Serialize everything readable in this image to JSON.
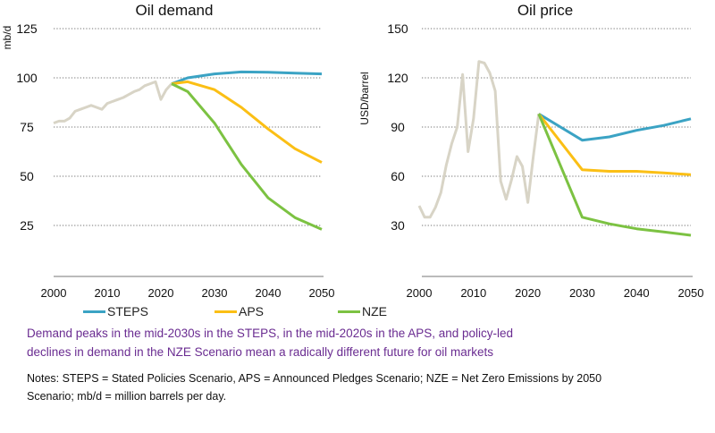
{
  "chart_data": [
    {
      "type": "line",
      "title": "Oil demand",
      "ylabel": "mb/d",
      "xlim": [
        2000,
        2050
      ],
      "ylim": [
        0,
        125
      ],
      "yticks": [
        25,
        50,
        75,
        100,
        125
      ],
      "xticks": [
        2000,
        2010,
        2020,
        2030,
        2040,
        2050
      ],
      "grid": "horizontal dotted",
      "history": {
        "x": [
          2000,
          2001,
          2002,
          2003,
          2004,
          2005,
          2006,
          2007,
          2008,
          2009,
          2010,
          2011,
          2012,
          2013,
          2014,
          2015,
          2016,
          2017,
          2018,
          2019,
          2020,
          2021,
          2022
        ],
        "y": [
          77,
          78,
          78,
          79.5,
          83,
          84,
          85,
          86,
          85,
          84,
          87,
          88,
          89,
          90,
          91.5,
          93,
          94,
          96,
          97,
          98,
          89,
          94,
          97
        ]
      },
      "series": [
        {
          "name": "STEPS",
          "x": [
            2022,
            2025,
            2030,
            2035,
            2040,
            2045,
            2050
          ],
          "y": [
            97,
            100,
            102,
            103,
            102.8,
            102.4,
            102
          ]
        },
        {
          "name": "APS",
          "x": [
            2022,
            2025,
            2030,
            2035,
            2040,
            2045,
            2050
          ],
          "y": [
            97,
            98,
            94,
            85,
            74,
            64,
            57
          ]
        },
        {
          "name": "NZE",
          "x": [
            2022,
            2025,
            2030,
            2035,
            2040,
            2045,
            2050
          ],
          "y": [
            97,
            93,
            77,
            56,
            39,
            29,
            23
          ]
        }
      ]
    },
    {
      "type": "line",
      "title": "Oil price",
      "ylabel": "USD/barrel",
      "xlim": [
        2000,
        2050
      ],
      "ylim": [
        0,
        150
      ],
      "yticks": [
        30,
        60,
        90,
        120,
        150
      ],
      "xticks": [
        2000,
        2010,
        2020,
        2030,
        2040,
        2050
      ],
      "grid": "horizontal dotted",
      "history": {
        "x": [
          2000,
          2001,
          2002,
          2003,
          2004,
          2005,
          2006,
          2007,
          2008,
          2009,
          2010,
          2011,
          2012,
          2013,
          2014,
          2015,
          2016,
          2017,
          2018,
          2019,
          2020,
          2021,
          2022
        ],
        "y": [
          42,
          35,
          35,
          41,
          50,
          67,
          80,
          90,
          122,
          75,
          95,
          130,
          129,
          123,
          112,
          57,
          46,
          58,
          72,
          66,
          44,
          72,
          98
        ]
      },
      "series": [
        {
          "name": "STEPS",
          "x": [
            2022,
            2030,
            2035,
            2040,
            2045,
            2050
          ],
          "y": [
            98,
            82,
            84,
            88,
            91,
            95
          ]
        },
        {
          "name": "APS",
          "x": [
            2022,
            2030,
            2035,
            2040,
            2045,
            2050
          ],
          "y": [
            98,
            64,
            63,
            63,
            62,
            61
          ]
        },
        {
          "name": "NZE",
          "x": [
            2022,
            2030,
            2035,
            2040,
            2045,
            2050
          ],
          "y": [
            98,
            35,
            31,
            28,
            26,
            24
          ]
        }
      ]
    }
  ],
  "colors": {
    "STEPS": "#3ba3c4",
    "APS": "#fbbf15",
    "NZE": "#7cc242",
    "history": "#d8d4c6"
  },
  "legend": [
    "STEPS",
    "APS",
    "NZE"
  ],
  "caption": {
    "line1": "Demand peaks in the mid-2030s in the STEPS, in the mid-2020s in the APS, and policy-led",
    "line2": "declines in demand in the NZE Scenario mean a radically different future for oil markets"
  },
  "notes": {
    "line1": "Notes: STEPS = Stated Policies Scenario, APS =  Announced Pledges Scenario; NZE =  Net  Zero Emissions by 2050",
    "line2": "Scenario; mb/d = million barrels per day."
  }
}
